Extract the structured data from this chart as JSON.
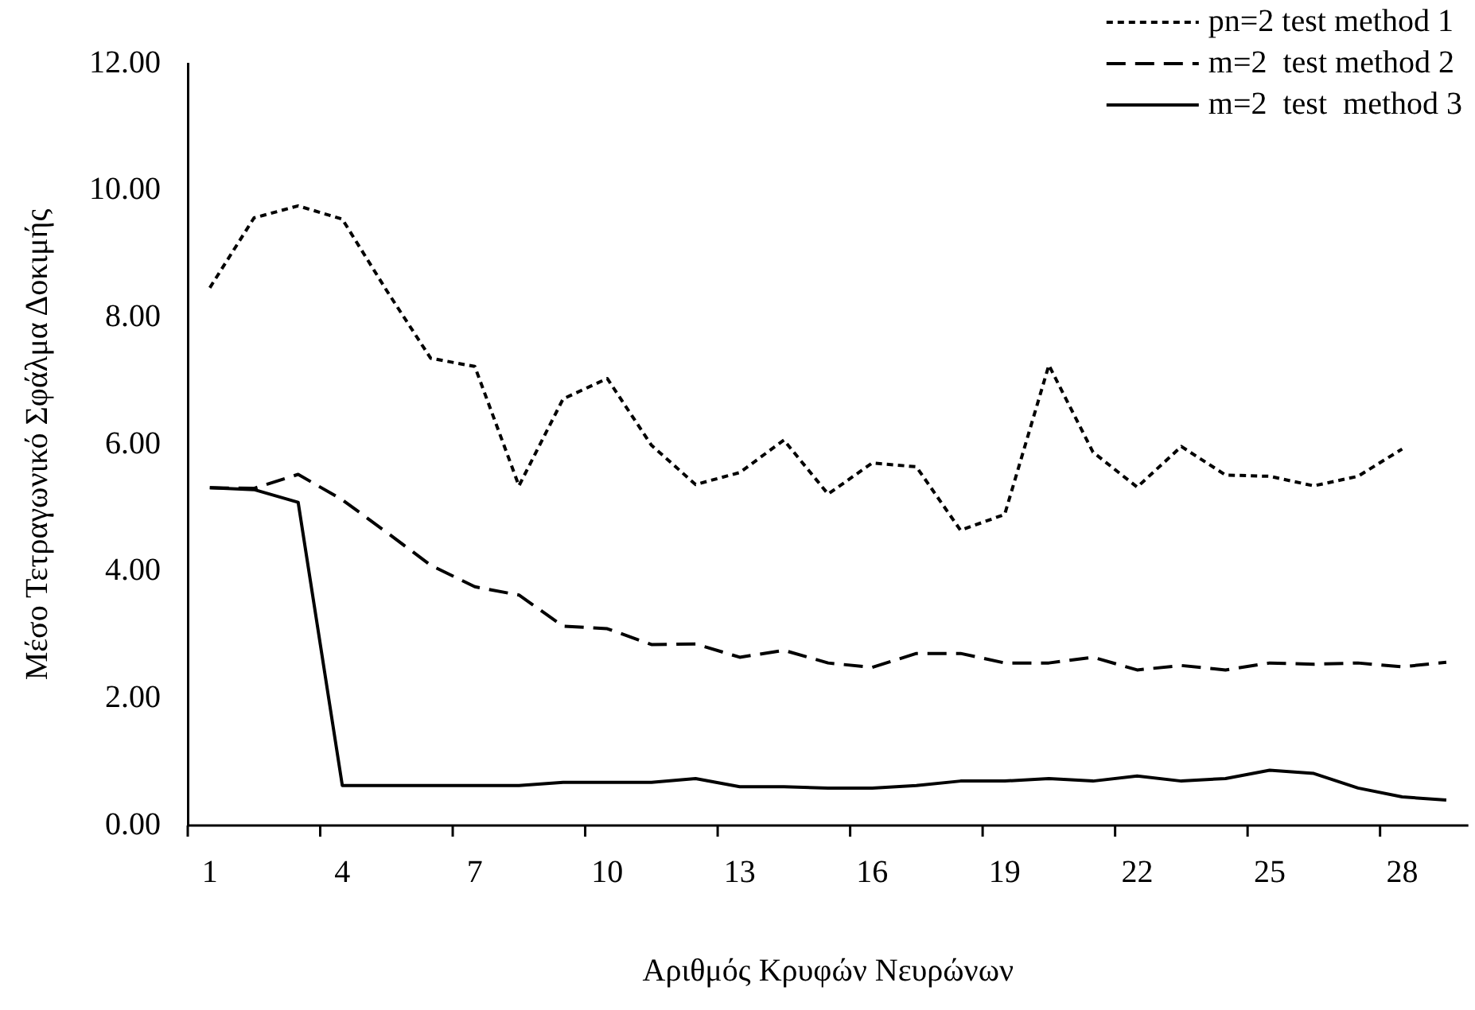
{
  "chart_data": {
    "type": "line",
    "xlabel": "Αριθμός Κρυφών Νευρώνων",
    "ylabel": "Μέσο Τετραγωνικό Σφάλμα Δοκιμής",
    "categories": [
      "1",
      null,
      null,
      "4",
      null,
      null,
      "7",
      null,
      null,
      "10",
      null,
      null,
      "13",
      null,
      null,
      "16",
      null,
      null,
      "19",
      null,
      null,
      "22",
      null,
      null,
      "25",
      null,
      null,
      "28",
      null
    ],
    "ylim": [
      0,
      12
    ],
    "yticks": [
      {
        "value": 0,
        "label": "0.00"
      },
      {
        "value": 2,
        "label": "2.00"
      },
      {
        "value": 4,
        "label": "4.00"
      },
      {
        "value": 6,
        "label": "6.00"
      },
      {
        "value": 8,
        "label": "8.00"
      },
      {
        "value": 10,
        "label": "10.00"
      },
      {
        "value": 12,
        "label": "12.00"
      }
    ],
    "grid": false,
    "legend": "top right",
    "marker": "none",
    "series": [
      {
        "name": "pn=2 test method 1",
        "color": "#000000",
        "line_style": "dotted",
        "values": [
          8.47,
          9.57,
          9.76,
          9.55,
          8.43,
          7.36,
          7.23,
          5.35,
          6.72,
          7.04,
          5.99,
          5.37,
          5.56,
          6.07,
          5.22,
          5.71,
          5.65,
          4.65,
          4.9,
          7.25,
          5.88,
          5.33,
          5.97,
          5.52,
          5.5,
          5.35,
          5.5,
          5.93,
          null
        ]
      },
      {
        "name": "m=2  test method 2",
        "color": "#000000",
        "line_style": "dashed",
        "values": [
          5.32,
          5.31,
          5.53,
          5.13,
          4.62,
          4.1,
          3.76,
          3.63,
          3.14,
          3.1,
          2.85,
          2.86,
          2.65,
          2.76,
          2.56,
          2.49,
          2.71,
          2.71,
          2.56,
          2.56,
          2.65,
          2.45,
          2.52,
          2.45,
          2.56,
          2.54,
          2.56,
          2.5,
          2.57
        ]
      },
      {
        "name": "m=2  test  method 3",
        "color": "#000000",
        "line_style": "solid",
        "values": [
          5.32,
          5.29,
          5.09,
          0.63,
          0.63,
          0.63,
          0.63,
          0.63,
          0.68,
          0.68,
          0.68,
          0.74,
          0.61,
          0.61,
          0.59,
          0.59,
          0.63,
          0.7,
          0.7,
          0.74,
          0.7,
          0.78,
          0.7,
          0.74,
          0.87,
          0.82,
          0.59,
          0.45,
          0.4
        ]
      }
    ]
  }
}
